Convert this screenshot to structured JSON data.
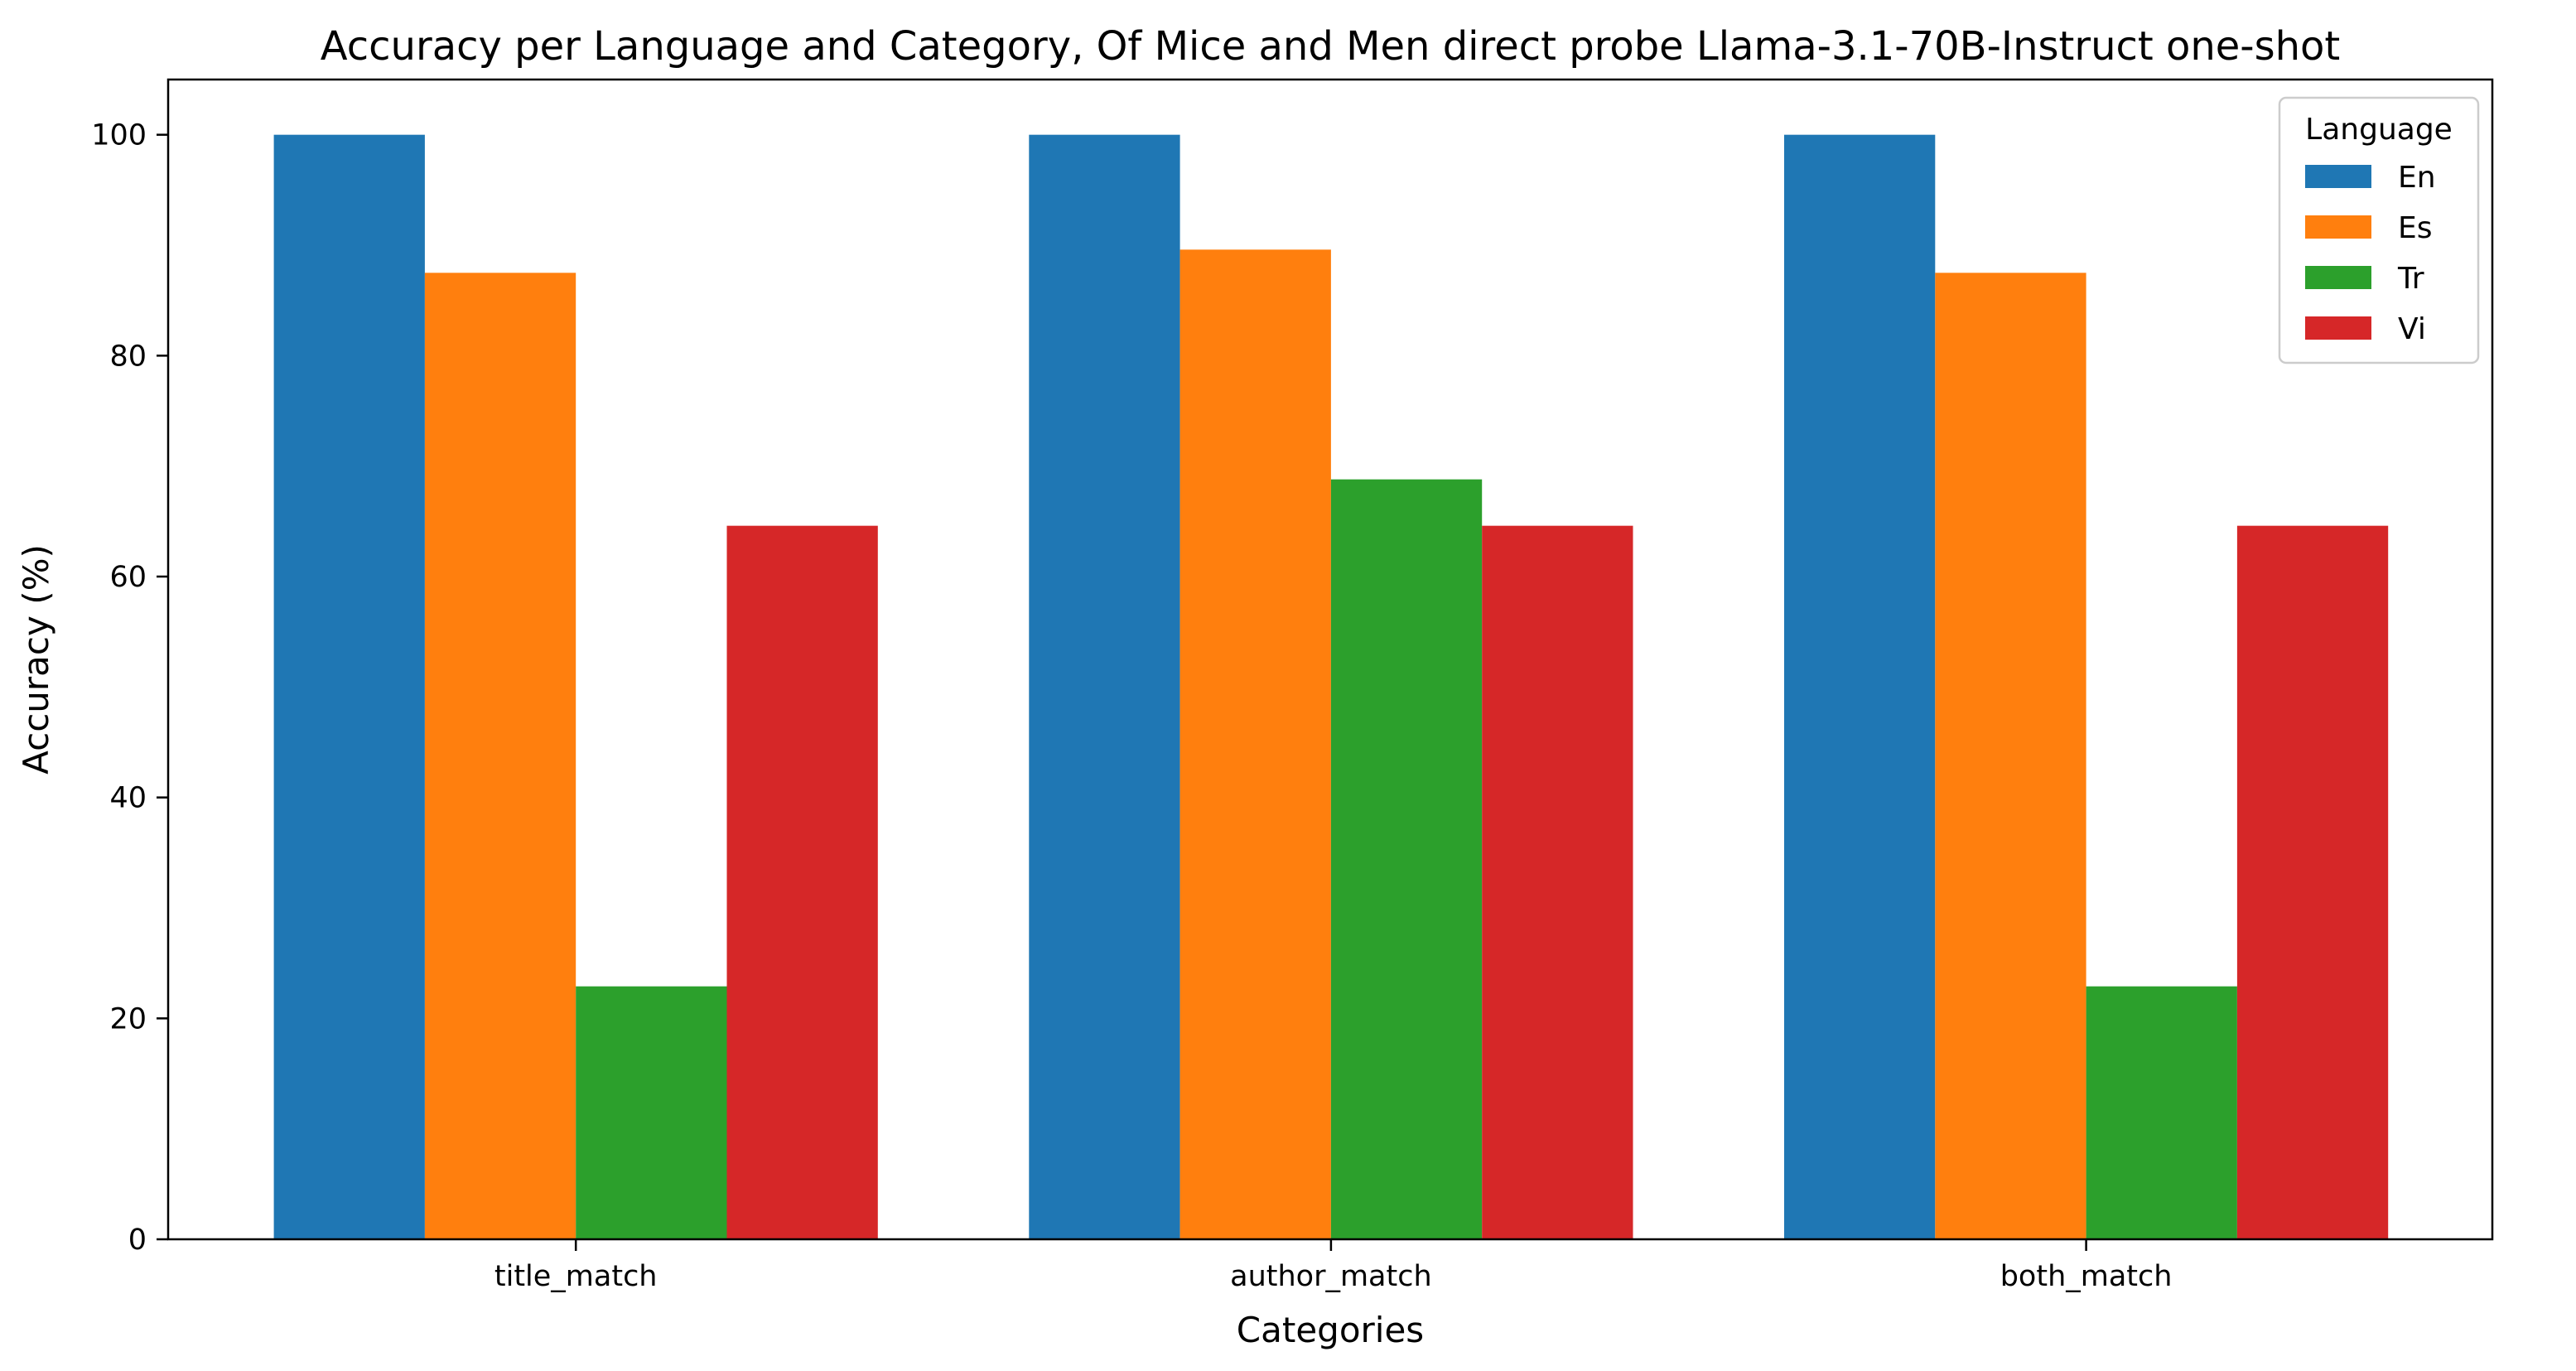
{
  "chart_data": {
    "type": "bar",
    "title": "Accuracy per Language and Category, Of Mice and Men direct probe Llama-3.1-70B-Instruct one-shot",
    "xlabel": "Categories",
    "ylabel": "Accuracy (%)",
    "categories": [
      "title_match",
      "author_match",
      "both_match"
    ],
    "series": [
      {
        "name": "En",
        "color": "#1f77b4",
        "values": [
          100,
          100,
          100
        ]
      },
      {
        "name": "Es",
        "color": "#ff7f0e",
        "values": [
          87.5,
          89.6,
          87.5
        ]
      },
      {
        "name": "Tr",
        "color": "#2ca02c",
        "values": [
          22.9,
          68.8,
          22.9
        ]
      },
      {
        "name": "Vi",
        "color": "#d62728",
        "values": [
          64.6,
          64.6,
          64.6
        ]
      }
    ],
    "ylim": [
      0,
      105
    ],
    "yticks": [
      0,
      20,
      40,
      60,
      80,
      100
    ],
    "grid": false,
    "legend": {
      "title": "Language",
      "placement": "top-right"
    }
  }
}
